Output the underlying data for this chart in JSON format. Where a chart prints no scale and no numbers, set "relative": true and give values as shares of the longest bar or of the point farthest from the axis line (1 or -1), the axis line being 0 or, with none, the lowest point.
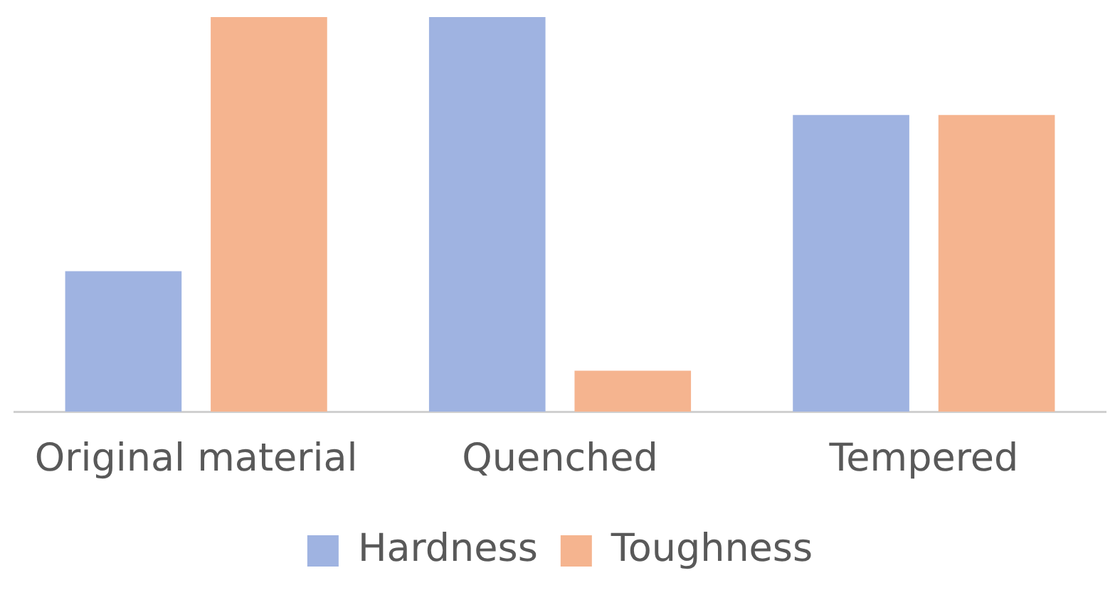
{
  "chart_data": {
    "type": "bar",
    "relative": true,
    "categories": [
      "Original material",
      "Quenched",
      "Tempered"
    ],
    "series": [
      {
        "name": "Hardness",
        "color": "#9fb3e1",
        "values": [
          0.356,
          1,
          0.752
        ]
      },
      {
        "name": "Toughness",
        "color": "#f5b48f",
        "values": [
          1,
          0.104,
          0.752
        ]
      }
    ],
    "legend": "bottom",
    "grid": false
  }
}
